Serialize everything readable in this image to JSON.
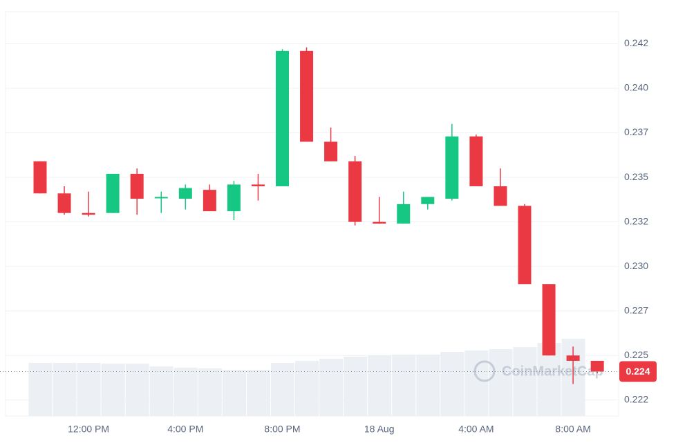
{
  "chart_data": {
    "type": "candlestick",
    "categories": [
      null,
      null,
      "12:00 PM",
      null,
      null,
      null,
      "4:00 PM",
      null,
      null,
      null,
      "8:00 PM",
      null,
      null,
      null,
      "18 Aug",
      null,
      null,
      null,
      "4:00 AM",
      null,
      null,
      null,
      "8:00 AM",
      null
    ],
    "open": [
      0.2359,
      0.2341,
      0.233,
      0.233,
      0.2352,
      0.2339,
      0.2338,
      0.2343,
      0.2331,
      0.2346,
      0.2345,
      0.2421,
      0.237,
      0.2359,
      0.2325,
      0.2324,
      0.2335,
      0.2338,
      0.2373,
      0.2345,
      0.2334,
      0.229,
      0.225,
      0.2247
    ],
    "high": [
      0.2359,
      0.2345,
      0.2342,
      0.2352,
      0.2355,
      0.2342,
      0.2346,
      0.2346,
      0.2348,
      0.2352,
      0.2422,
      0.2423,
      0.2378,
      0.2362,
      0.2339,
      0.2342,
      0.2339,
      0.238,
      0.2374,
      0.2355,
      0.2335,
      0.229,
      0.2255,
      0.2247
    ],
    "low": [
      0.2341,
      0.2329,
      0.2328,
      0.233,
      0.2329,
      0.233,
      0.2332,
      0.2331,
      0.2326,
      0.2337,
      0.2345,
      0.237,
      0.2359,
      0.2323,
      0.2324,
      0.2324,
      0.2332,
      0.2337,
      0.2345,
      0.2334,
      0.229,
      0.225,
      0.2234,
      0.224
    ],
    "close": [
      0.2341,
      0.233,
      0.2329,
      0.2352,
      0.2338,
      0.2339,
      0.2344,
      0.2331,
      0.2346,
      0.2345,
      0.2421,
      0.237,
      0.2359,
      0.2325,
      0.2324,
      0.2335,
      0.2339,
      0.2373,
      0.2345,
      0.2334,
      0.229,
      0.225,
      0.2247,
      0.2241
    ],
    "volume": [
      77,
      77,
      77,
      76,
      76,
      72,
      70,
      69,
      67,
      67,
      77,
      80,
      83,
      86,
      88,
      89,
      89,
      93,
      95,
      97,
      100,
      106,
      112,
      null
    ],
    "up_color": "#16c784",
    "down_color": "#ea3943",
    "volume_color": "#eceff3",
    "ylim": [
      0.2216,
      0.2443
    ],
    "yticks": [
      {
        "value": 0.2225,
        "label": "0.222"
      },
      {
        "value": 0.225,
        "label": "0.225"
      },
      {
        "value": 0.2275,
        "label": "0.227"
      },
      {
        "value": 0.23,
        "label": "0.230"
      },
      {
        "value": 0.2325,
        "label": "0.232"
      },
      {
        "value": 0.235,
        "label": "0.235"
      },
      {
        "value": 0.2375,
        "label": "0.237"
      },
      {
        "value": 0.24,
        "label": "0.240"
      },
      {
        "value": 0.2425,
        "label": "0.242"
      }
    ],
    "last_price": {
      "value": 0.2241,
      "label": "0.224"
    },
    "watermark": "CoinMarketCap",
    "grid": true
  }
}
